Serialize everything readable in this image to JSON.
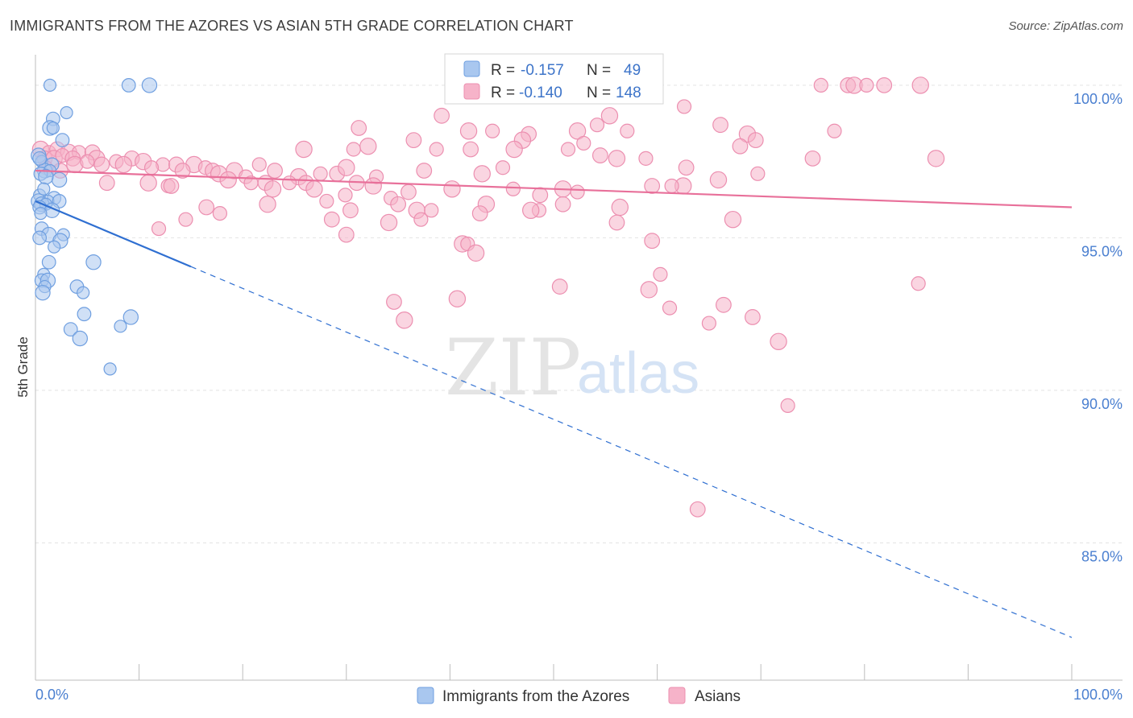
{
  "title": "IMMIGRANTS FROM THE AZORES VS ASIAN 5TH GRADE CORRELATION CHART",
  "source": "Source: ZipAtlas.com",
  "watermark": {
    "left": "ZIP",
    "right": "atlas"
  },
  "legend": {
    "rows": [
      {
        "r_label": "R =",
        "r_value": "-0.157",
        "n_label": "N =",
        "n_value": "49"
      },
      {
        "r_label": "R =",
        "r_value": "-0.140",
        "n_label": "N =",
        "n_value": "148"
      }
    ]
  },
  "colors": {
    "blue_fill": "#a9c7ef",
    "blue_stroke": "#6f9fe0",
    "blue_line": "#2f6fd1",
    "pink_fill": "#f6b3c9",
    "pink_stroke": "#ec8fb0",
    "pink_line": "#e8709a",
    "tick": "#4a7fd0",
    "grid": "#e3e3e3"
  },
  "chart_data": {
    "type": "scatter",
    "title": "IMMIGRANTS FROM THE AZORES VS ASIAN 5TH GRADE CORRELATION CHART",
    "xlabel": "",
    "ylabel": "5th Grade",
    "xlim": [
      0,
      100
    ],
    "ylim": [
      80.5,
      101.0
    ],
    "x_tick_labels": [
      "0.0%",
      "100.0%"
    ],
    "y_ticks": [
      85,
      90,
      95,
      100
    ],
    "y_tick_labels": [
      "85.0%",
      "90.0%",
      "95.0%",
      "100.0%"
    ],
    "grid": "horizontal dashed",
    "legend_position": "top-center",
    "series": [
      {
        "name": "Immigrants from the Azores",
        "r": -0.157,
        "n": 49,
        "trend": {
          "x0": 0,
          "y0": 96.2,
          "x1": 100,
          "y1": 81.9,
          "solid_until": 15
        },
        "points": [
          {
            "x": 1.4,
            "y": 100.0
          },
          {
            "x": 9.0,
            "y": 100.0
          },
          {
            "x": 11.0,
            "y": 100.0
          },
          {
            "x": 3.0,
            "y": 99.1
          },
          {
            "x": 1.7,
            "y": 98.9
          },
          {
            "x": 1.4,
            "y": 98.6
          },
          {
            "x": 1.7,
            "y": 98.6
          },
          {
            "x": 2.6,
            "y": 98.2
          },
          {
            "x": 0.3,
            "y": 97.7
          },
          {
            "x": 0.6,
            "y": 97.5
          },
          {
            "x": 1.6,
            "y": 97.4
          },
          {
            "x": 0.9,
            "y": 97.2
          },
          {
            "x": 1.4,
            "y": 97.2
          },
          {
            "x": 0.5,
            "y": 97.1
          },
          {
            "x": 2.3,
            "y": 96.9
          },
          {
            "x": 0.4,
            "y": 96.4
          },
          {
            "x": 1.8,
            "y": 96.3
          },
          {
            "x": 0.3,
            "y": 96.2
          },
          {
            "x": 1.2,
            "y": 96.2
          },
          {
            "x": 2.3,
            "y": 96.2
          },
          {
            "x": 0.6,
            "y": 96.1
          },
          {
            "x": 1.0,
            "y": 96.1
          },
          {
            "x": 0.4,
            "y": 96.0
          },
          {
            "x": 1.6,
            "y": 95.9
          },
          {
            "x": 0.5,
            "y": 95.8
          },
          {
            "x": 0.6,
            "y": 95.3
          },
          {
            "x": 1.3,
            "y": 95.1
          },
          {
            "x": 2.7,
            "y": 95.1
          },
          {
            "x": 0.4,
            "y": 95.0
          },
          {
            "x": 2.4,
            "y": 94.9
          },
          {
            "x": 1.8,
            "y": 94.7
          },
          {
            "x": 1.3,
            "y": 94.2
          },
          {
            "x": 5.6,
            "y": 94.2
          },
          {
            "x": 0.8,
            "y": 93.8
          },
          {
            "x": 0.6,
            "y": 93.6
          },
          {
            "x": 1.2,
            "y": 93.6
          },
          {
            "x": 0.9,
            "y": 93.4
          },
          {
            "x": 4.0,
            "y": 93.4
          },
          {
            "x": 0.7,
            "y": 93.2
          },
          {
            "x": 4.6,
            "y": 93.2
          },
          {
            "x": 4.7,
            "y": 92.5
          },
          {
            "x": 9.2,
            "y": 92.4
          },
          {
            "x": 8.2,
            "y": 92.1
          },
          {
            "x": 3.4,
            "y": 92.0
          },
          {
            "x": 4.3,
            "y": 91.7
          },
          {
            "x": 7.2,
            "y": 90.7
          },
          {
            "x": 0.4,
            "y": 97.6
          },
          {
            "x": 1.0,
            "y": 97.0
          },
          {
            "x": 0.8,
            "y": 96.6
          }
        ]
      },
      {
        "name": "Asians",
        "r": -0.14,
        "n": 148,
        "trend": {
          "x0": 0,
          "y0": 97.2,
          "x1": 100,
          "y1": 96.0
        },
        "points": [
          {
            "x": 75.8,
            "y": 100.0
          },
          {
            "x": 78.4,
            "y": 100.0
          },
          {
            "x": 79.0,
            "y": 100.0
          },
          {
            "x": 80.2,
            "y": 100.0
          },
          {
            "x": 81.9,
            "y": 100.0
          },
          {
            "x": 85.4,
            "y": 100.0
          },
          {
            "x": 62.6,
            "y": 99.3
          },
          {
            "x": 39.2,
            "y": 99.0
          },
          {
            "x": 55.4,
            "y": 99.0
          },
          {
            "x": 54.2,
            "y": 98.7
          },
          {
            "x": 31.2,
            "y": 98.6
          },
          {
            "x": 41.8,
            "y": 98.5
          },
          {
            "x": 44.1,
            "y": 98.5
          },
          {
            "x": 47.6,
            "y": 98.4
          },
          {
            "x": 52.3,
            "y": 98.5
          },
          {
            "x": 57.1,
            "y": 98.5
          },
          {
            "x": 66.1,
            "y": 98.7
          },
          {
            "x": 68.7,
            "y": 98.4
          },
          {
            "x": 77.1,
            "y": 98.5
          },
          {
            "x": 36.5,
            "y": 98.2
          },
          {
            "x": 47.0,
            "y": 98.2
          },
          {
            "x": 52.9,
            "y": 98.1
          },
          {
            "x": 69.5,
            "y": 98.2
          },
          {
            "x": 0.5,
            "y": 97.9
          },
          {
            "x": 1.3,
            "y": 97.8
          },
          {
            "x": 2.1,
            "y": 97.9
          },
          {
            "x": 3.2,
            "y": 97.8
          },
          {
            "x": 4.2,
            "y": 97.8
          },
          {
            "x": 5.5,
            "y": 97.8
          },
          {
            "x": 32.1,
            "y": 98.0
          },
          {
            "x": 38.7,
            "y": 97.9
          },
          {
            "x": 42.0,
            "y": 97.9
          },
          {
            "x": 46.2,
            "y": 97.9
          },
          {
            "x": 51.4,
            "y": 97.9
          },
          {
            "x": 54.5,
            "y": 97.7
          },
          {
            "x": 56.1,
            "y": 97.6
          },
          {
            "x": 58.9,
            "y": 97.6
          },
          {
            "x": 68.0,
            "y": 98.0
          },
          {
            "x": 25.9,
            "y": 97.9
          },
          {
            "x": 30.7,
            "y": 97.9
          },
          {
            "x": 0.9,
            "y": 97.6
          },
          {
            "x": 1.8,
            "y": 97.6
          },
          {
            "x": 2.6,
            "y": 97.7
          },
          {
            "x": 3.6,
            "y": 97.6
          },
          {
            "x": 5.9,
            "y": 97.6
          },
          {
            "x": 7.8,
            "y": 97.5
          },
          {
            "x": 9.3,
            "y": 97.6
          },
          {
            "x": 10.4,
            "y": 97.5
          },
          {
            "x": 12.3,
            "y": 97.4
          },
          {
            "x": 13.6,
            "y": 97.4
          },
          {
            "x": 15.3,
            "y": 97.4
          },
          {
            "x": 16.4,
            "y": 97.3
          },
          {
            "x": 17.1,
            "y": 97.2
          },
          {
            "x": 19.2,
            "y": 97.2
          },
          {
            "x": 21.6,
            "y": 97.4
          },
          {
            "x": 23.1,
            "y": 97.2
          },
          {
            "x": 25.4,
            "y": 97.0
          },
          {
            "x": 27.5,
            "y": 97.1
          },
          {
            "x": 29.1,
            "y": 97.1
          },
          {
            "x": 30.0,
            "y": 97.3
          },
          {
            "x": 32.9,
            "y": 97.0
          },
          {
            "x": 37.5,
            "y": 97.2
          },
          {
            "x": 43.1,
            "y": 97.1
          },
          {
            "x": 45.1,
            "y": 97.3
          },
          {
            "x": 62.8,
            "y": 97.3
          },
          {
            "x": 65.9,
            "y": 96.9
          },
          {
            "x": 69.7,
            "y": 97.1
          },
          {
            "x": 75.0,
            "y": 97.6
          },
          {
            "x": 86.9,
            "y": 97.6
          },
          {
            "x": 1.0,
            "y": 97.3
          },
          {
            "x": 2.4,
            "y": 97.2
          },
          {
            "x": 3.8,
            "y": 97.4
          },
          {
            "x": 5.0,
            "y": 97.5
          },
          {
            "x": 6.4,
            "y": 97.4
          },
          {
            "x": 8.5,
            "y": 97.4
          },
          {
            "x": 11.2,
            "y": 97.3
          },
          {
            "x": 14.2,
            "y": 97.2
          },
          {
            "x": 17.7,
            "y": 97.1
          },
          {
            "x": 20.3,
            "y": 97.0
          },
          {
            "x": 6.9,
            "y": 96.8
          },
          {
            "x": 10.9,
            "y": 96.8
          },
          {
            "x": 12.8,
            "y": 96.7
          },
          {
            "x": 13.1,
            "y": 96.7
          },
          {
            "x": 18.6,
            "y": 96.9
          },
          {
            "x": 20.8,
            "y": 96.8
          },
          {
            "x": 22.2,
            "y": 96.8
          },
          {
            "x": 22.9,
            "y": 96.6
          },
          {
            "x": 24.5,
            "y": 96.8
          },
          {
            "x": 26.1,
            "y": 96.8
          },
          {
            "x": 26.9,
            "y": 96.6
          },
          {
            "x": 29.9,
            "y": 96.4
          },
          {
            "x": 31.0,
            "y": 96.8
          },
          {
            "x": 32.6,
            "y": 96.7
          },
          {
            "x": 34.3,
            "y": 96.3
          },
          {
            "x": 36.0,
            "y": 96.5
          },
          {
            "x": 40.2,
            "y": 96.6
          },
          {
            "x": 46.1,
            "y": 96.6
          },
          {
            "x": 48.7,
            "y": 96.4
          },
          {
            "x": 50.9,
            "y": 96.6
          },
          {
            "x": 52.3,
            "y": 96.5
          },
          {
            "x": 59.5,
            "y": 96.7
          },
          {
            "x": 62.5,
            "y": 96.7
          },
          {
            "x": 61.4,
            "y": 96.7
          },
          {
            "x": 16.5,
            "y": 96.0
          },
          {
            "x": 22.4,
            "y": 96.1
          },
          {
            "x": 28.1,
            "y": 96.2
          },
          {
            "x": 35.0,
            "y": 96.1
          },
          {
            "x": 43.5,
            "y": 96.1
          },
          {
            "x": 48.6,
            "y": 95.9
          },
          {
            "x": 50.9,
            "y": 96.1
          },
          {
            "x": 56.4,
            "y": 96.0
          },
          {
            "x": 17.8,
            "y": 95.8
          },
          {
            "x": 30.4,
            "y": 95.9
          },
          {
            "x": 36.8,
            "y": 95.9
          },
          {
            "x": 38.2,
            "y": 95.9
          },
          {
            "x": 42.9,
            "y": 95.8
          },
          {
            "x": 47.8,
            "y": 95.9
          },
          {
            "x": 14.5,
            "y": 95.6
          },
          {
            "x": 28.6,
            "y": 95.6
          },
          {
            "x": 34.1,
            "y": 95.5
          },
          {
            "x": 37.2,
            "y": 95.6
          },
          {
            "x": 56.1,
            "y": 95.5
          },
          {
            "x": 67.3,
            "y": 95.6
          },
          {
            "x": 11.9,
            "y": 95.3
          },
          {
            "x": 30.0,
            "y": 95.1
          },
          {
            "x": 41.2,
            "y": 94.8
          },
          {
            "x": 41.7,
            "y": 94.8
          },
          {
            "x": 59.5,
            "y": 94.9
          },
          {
            "x": 42.5,
            "y": 94.5
          },
          {
            "x": 60.3,
            "y": 93.8
          },
          {
            "x": 50.6,
            "y": 93.4
          },
          {
            "x": 59.2,
            "y": 93.3
          },
          {
            "x": 85.2,
            "y": 93.5
          },
          {
            "x": 34.6,
            "y": 92.9
          },
          {
            "x": 40.7,
            "y": 93.0
          },
          {
            "x": 61.2,
            "y": 92.7
          },
          {
            "x": 66.4,
            "y": 92.8
          },
          {
            "x": 35.6,
            "y": 92.3
          },
          {
            "x": 65.0,
            "y": 92.2
          },
          {
            "x": 69.2,
            "y": 92.4
          },
          {
            "x": 71.7,
            "y": 91.6
          },
          {
            "x": 72.6,
            "y": 89.5
          },
          {
            "x": 63.9,
            "y": 86.1
          }
        ]
      }
    ]
  }
}
